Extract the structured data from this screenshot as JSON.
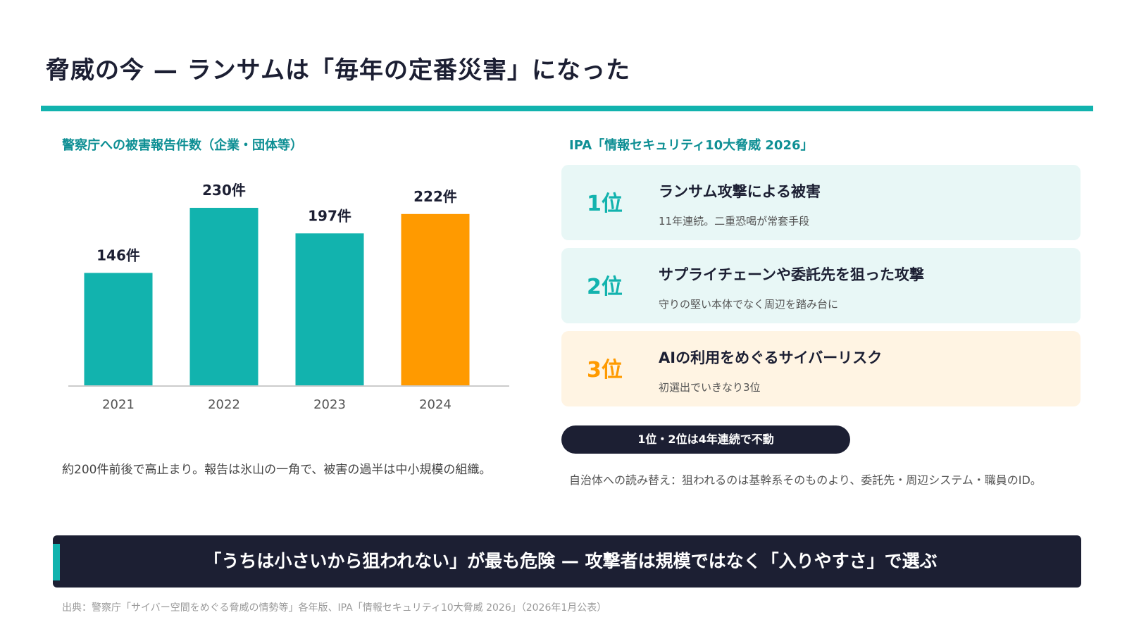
{
  "title": "脅威の今 — ランサムは「毎年の定番災害」になった",
  "chart_section_label": "警察庁への被害報告件数（企業・団体等）",
  "chart_data": {
    "type": "bar",
    "categories": [
      "2021",
      "2022",
      "2023",
      "2024"
    ],
    "values": [
      146,
      230,
      197,
      222
    ],
    "value_labels": [
      "146件",
      "230件",
      "197件",
      "222件"
    ],
    "colors": [
      "#12b3ae",
      "#12b3ae",
      "#12b3ae",
      "#ff9a00"
    ],
    "ylim": [
      0,
      230
    ],
    "grid": false
  },
  "chart_caption": "約200件前後で高止まり。報告は氷山の一角で、被害の過半は中小規模の組織。",
  "ranking_section_label": "IPA「情報セキュリティ10大脅威 2026」",
  "rankings": [
    {
      "rank": "1位",
      "title": "ランサム攻撃による被害",
      "desc": "11年連続。二重恐喝が常套手段",
      "bg": "#e8f7f6",
      "color": "#12b3ae"
    },
    {
      "rank": "2位",
      "title": "サプライチェーンや委託先を狙った攻撃",
      "desc": "守りの堅い本体でなく周辺を踏み台に",
      "bg": "#e8f7f6",
      "color": "#12b3ae"
    },
    {
      "rank": "3位",
      "title": "AIの利用をめぐるサイバーリスク",
      "desc": "初選出でいきなり3位",
      "bg": "#fff4e3",
      "color": "#ff9a00"
    }
  ],
  "pill_text": "1位・2位は4年連続で不動",
  "note": "自治体への読み替え：狙われるのは基幹系そのものより、委託先・周辺システム・職員のID。",
  "banner": "「うちは小さいから狙われない」が最も危険 — 攻撃者は規模ではなく「入りやすさ」で選ぶ",
  "source": "出典：警察庁「サイバー空間をめぐる脅威の情勢等」各年版、IPA「情報セキュリティ10大脅威 2026」（2026年1月公表）"
}
